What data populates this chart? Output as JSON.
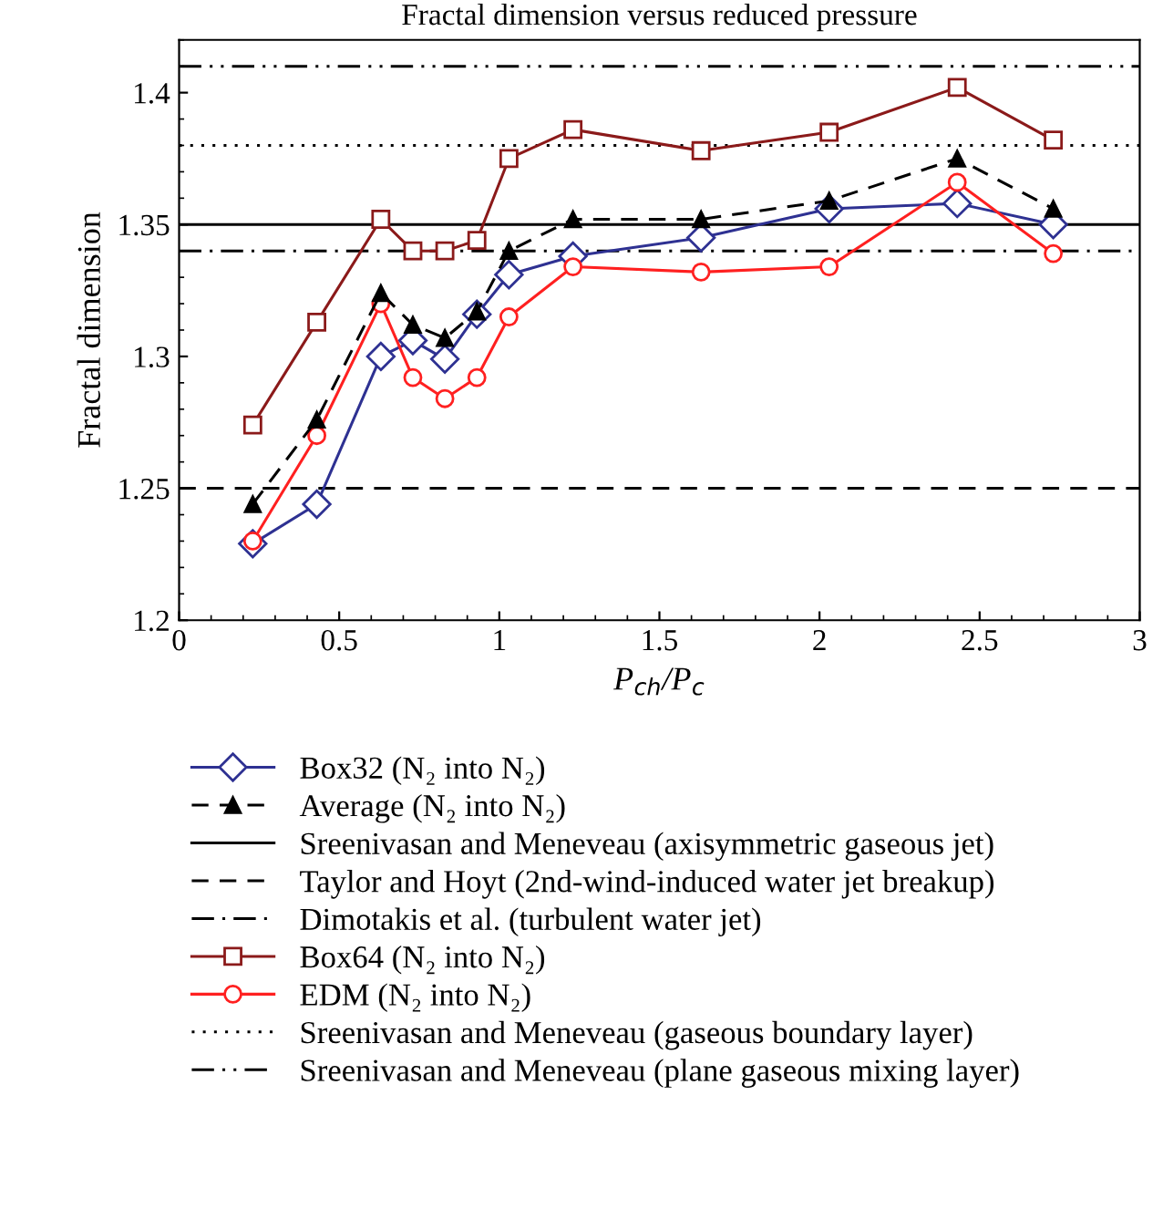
{
  "chart_data": {
    "type": "line",
    "title": "Fractal dimension versus reduced pressure",
    "xlabel": "P$_{ch}$/P$_{c}$",
    "ylabel": "Fractal dimension",
    "x": [
      0.23,
      0.43,
      0.63,
      0.73,
      0.83,
      0.93,
      1.03,
      1.23,
      1.63,
      2.03,
      2.43,
      2.73
    ],
    "series": [
      {
        "name": "Box32 (N₂ into N₂)",
        "color": "#2e3192",
        "marker": "diamond",
        "line_style": "solid",
        "values": [
          1.229,
          1.244,
          1.3,
          1.306,
          1.299,
          1.316,
          1.331,
          1.338,
          1.345,
          1.356,
          1.358,
          1.35
        ]
      },
      {
        "name": "Average (N₂ into N₂)",
        "color": "#000000",
        "marker": "triangle",
        "line_style": "dashed",
        "values": [
          1.244,
          1.276,
          1.324,
          1.312,
          1.307,
          1.317,
          1.34,
          1.352,
          1.352,
          1.359,
          1.375,
          1.356
        ]
      },
      {
        "name": "Box64 (N₂ into N₂)",
        "color": "#8b1a1a",
        "marker": "square",
        "line_style": "solid",
        "values": [
          1.274,
          1.313,
          1.352,
          1.34,
          1.34,
          1.344,
          1.375,
          1.386,
          1.378,
          1.385,
          1.402,
          1.382
        ]
      },
      {
        "name": "EDM (N₂ into N₂)",
        "color": "#ff2020",
        "marker": "circle",
        "line_style": "solid",
        "values": [
          1.23,
          1.27,
          1.32,
          1.292,
          1.284,
          1.292,
          1.315,
          1.334,
          1.332,
          1.334,
          1.366,
          1.339
        ]
      }
    ],
    "ref_lines": [
      {
        "axis": "y",
        "value": 1.35,
        "label": "Sreenivasan and Meneveau (axisymmetric gaseous jet)",
        "color": "#000000",
        "line_style": "solid"
      },
      {
        "axis": "y",
        "value": 1.25,
        "label": "Taylor and Hoyt (2nd-wind-induced water jet breakup)",
        "color": "#000000",
        "line_style": "dashed"
      },
      {
        "axis": "y",
        "value": 1.34,
        "label": "Dimotakis et al. (turbulent water jet)",
        "color": "#000000",
        "line_style": "dashdot"
      },
      {
        "axis": "y",
        "value": 1.38,
        "label": "Sreenivasan and Meneveau (gaseous boundary layer)",
        "color": "#000000",
        "line_style": "dotted"
      },
      {
        "axis": "y",
        "value": 1.41,
        "label": "Sreenivasan and Meneveau (plane gaseous mixing layer)",
        "color": "#000000",
        "line_style": "dashdotdot"
      }
    ],
    "xlim": [
      0,
      3
    ],
    "ylim": [
      1.2,
      1.42
    ],
    "xticks": [
      0,
      0.5,
      1,
      1.5,
      2,
      2.5,
      3
    ],
    "yticks": [
      1.2,
      1.25,
      1.3,
      1.35,
      1.4
    ],
    "grid": false,
    "legend": "bottom"
  }
}
